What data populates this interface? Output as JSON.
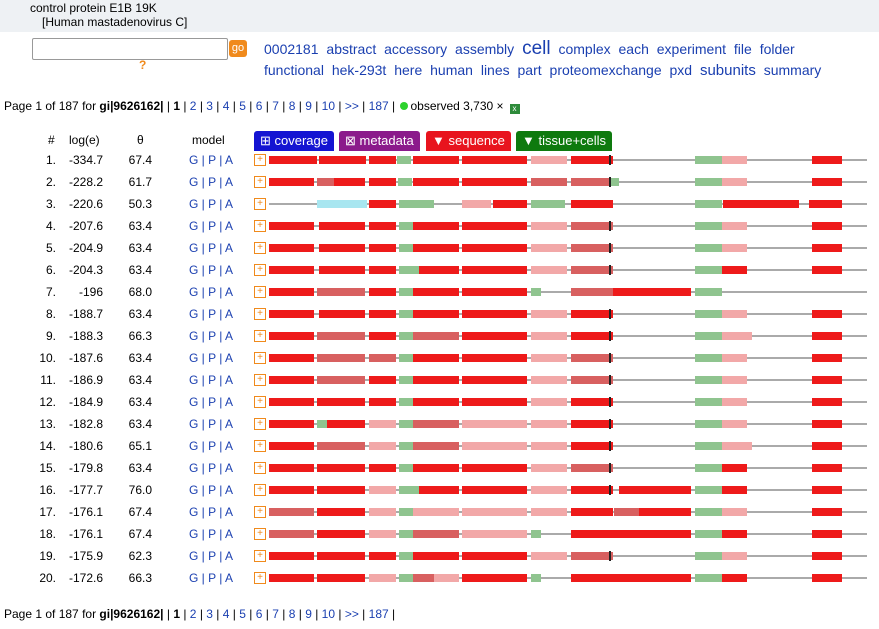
{
  "header": {
    "title": "control protein E1B 19K",
    "organism": "[Human mastadenovirus C]"
  },
  "search": {
    "value": "",
    "go_label": "go",
    "help_label": "?"
  },
  "tags": [
    {
      "text": "0002181",
      "size": "n"
    },
    {
      "text": "abstract",
      "size": "n"
    },
    {
      "text": "accessory",
      "size": "n"
    },
    {
      "text": "assembly",
      "size": "n"
    },
    {
      "text": "cell",
      "size": "big"
    },
    {
      "text": "complex",
      "size": "n"
    },
    {
      "text": "each",
      "size": "n"
    },
    {
      "text": "experiment",
      "size": "n"
    },
    {
      "text": "file",
      "size": "n"
    },
    {
      "text": "folder",
      "size": "n"
    },
    {
      "text": "functional",
      "size": "n"
    },
    {
      "text": "hek-293t",
      "size": "n"
    },
    {
      "text": "here",
      "size": "n"
    },
    {
      "text": "human",
      "size": "n"
    },
    {
      "text": "lines",
      "size": "n"
    },
    {
      "text": "part",
      "size": "n"
    },
    {
      "text": "proteomexchange",
      "size": "n"
    },
    {
      "text": "pxd",
      "size": "n"
    },
    {
      "text": "subunits",
      "size": "mid"
    },
    {
      "text": "summary",
      "size": "n"
    }
  ],
  "pager": {
    "prefix": "Page 1 of 187 for ",
    "gi_label": "gi|9626162|",
    "current": "1",
    "pages": [
      "2",
      "3",
      "4",
      "5",
      "6",
      "7",
      "8",
      "9",
      "10",
      ">>",
      "187"
    ],
    "observed": "observed 3,730 ×"
  },
  "columns": {
    "num": "#",
    "loge": "log(e)",
    "theta": "θ",
    "model": "model"
  },
  "panel_buttons": [
    {
      "label": "⊞ coverage",
      "color": "#1414d2"
    },
    {
      "label": "⊠ metadata",
      "color": "#8b1a8b"
    },
    {
      "label": "▼ sequence",
      "color": "#e8141e"
    },
    {
      "label": "▼ tissue+cells",
      "color": "#0e7a0e"
    }
  ],
  "model_links": "G | P | A",
  "rows": [
    {
      "n": "1.",
      "loge": "-334.7",
      "theta": "67.4"
    },
    {
      "n": "2.",
      "loge": "-228.2",
      "theta": "61.7"
    },
    {
      "n": "3.",
      "loge": "-220.6",
      "theta": "50.3"
    },
    {
      "n": "4.",
      "loge": "-207.6",
      "theta": "63.4"
    },
    {
      "n": "5.",
      "loge": "-204.9",
      "theta": "63.4"
    },
    {
      "n": "6.",
      "loge": "-204.3",
      "theta": "63.4"
    },
    {
      "n": "7.",
      "loge": "-196",
      "theta": "68.0"
    },
    {
      "n": "8.",
      "loge": "-188.7",
      "theta": "63.4"
    },
    {
      "n": "9.",
      "loge": "-188.3",
      "theta": "66.3"
    },
    {
      "n": "10.",
      "loge": "-187.6",
      "theta": "63.4"
    },
    {
      "n": "11.",
      "loge": "-186.9",
      "theta": "63.4"
    },
    {
      "n": "12.",
      "loge": "-184.9",
      "theta": "63.4"
    },
    {
      "n": "13.",
      "loge": "-182.8",
      "theta": "63.4"
    },
    {
      "n": "14.",
      "loge": "-180.6",
      "theta": "65.1"
    },
    {
      "n": "15.",
      "loge": "-179.8",
      "theta": "63.4"
    },
    {
      "n": "16.",
      "loge": "-177.7",
      "theta": "76.0"
    },
    {
      "n": "17.",
      "loge": "-176.1",
      "theta": "67.4"
    },
    {
      "n": "18.",
      "loge": "-176.1",
      "theta": "67.4"
    },
    {
      "n": "19.",
      "loge": "-175.9",
      "theta": "62.3"
    },
    {
      "n": "20.",
      "loge": "-172.6",
      "theta": "66.3"
    }
  ],
  "colors": {
    "strong": "#ee1a1a",
    "medium": "#d86060",
    "weak": "#f2a8a8",
    "green": "#8fc48f",
    "cyan": "#a8e6f0",
    "line": "#777777"
  }
}
